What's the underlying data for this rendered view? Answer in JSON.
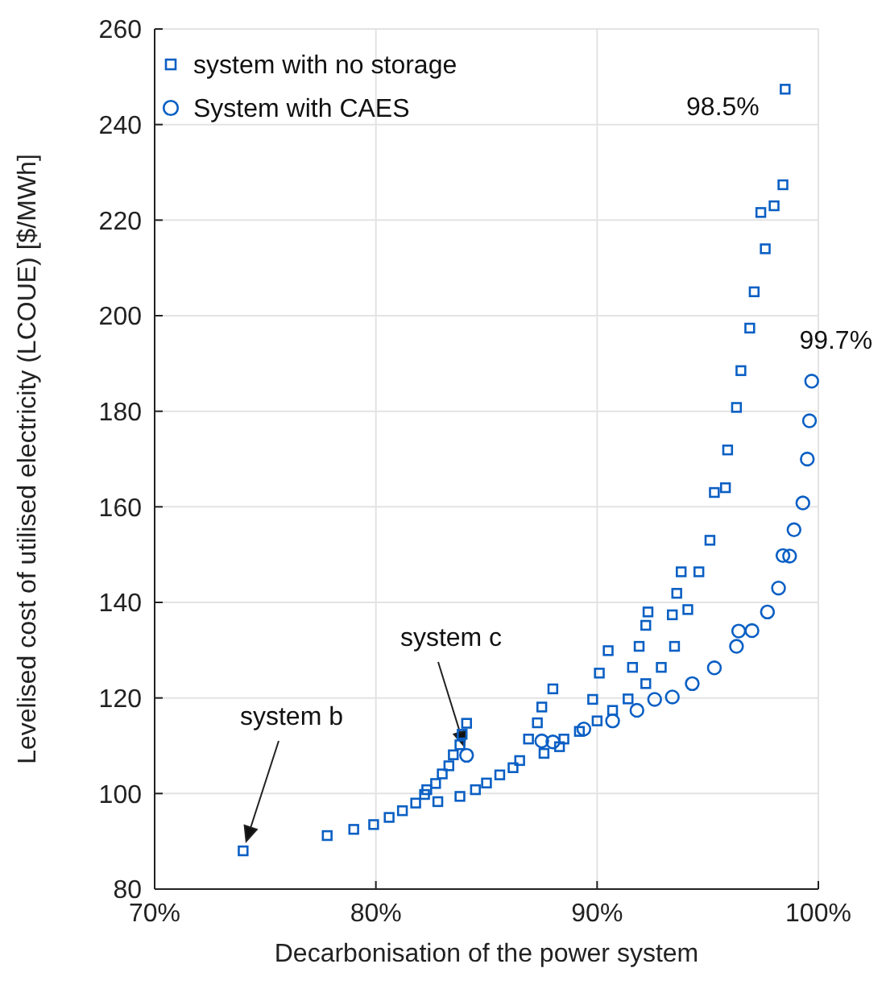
{
  "chart_data": {
    "type": "scatter",
    "xlabel": "Decarbonisation of the power system",
    "ylabel": "Levelised cost of utilised electricity (LCOUE) [$/MWh]",
    "xlim": [
      70,
      100
    ],
    "xticks": [
      {
        "value": 70,
        "label": "70%"
      },
      {
        "value": 80,
        "label": "80%"
      },
      {
        "value": 90,
        "label": "90%"
      },
      {
        "value": 100,
        "label": "100%"
      }
    ],
    "ylim": [
      80,
      260
    ],
    "yticks": [
      80,
      100,
      120,
      140,
      160,
      180,
      200,
      220,
      240,
      260
    ],
    "grid": true,
    "legend": "top left",
    "series": [
      {
        "name": "system with no storage",
        "color": "#0a5fc4",
        "marker": "square",
        "x": [
          74.0,
          77.8,
          79.0,
          79.9,
          80.6,
          81.2,
          81.8,
          82.2,
          82.8,
          83.8,
          84.5,
          85.0,
          85.6,
          86.2,
          86.5,
          87.6,
          88.3,
          82.3,
          82.7,
          83.0,
          83.3,
          83.5,
          83.8,
          83.9,
          84.1,
          86.9,
          87.3,
          87.5,
          88.0,
          88.5,
          89.2,
          89.8,
          90.0,
          90.1,
          90.5,
          90.7,
          91.4,
          91.6,
          91.9,
          92.2,
          92.3,
          92.2,
          92.9,
          93.4,
          93.5,
          93.6,
          93.8,
          94.1,
          94.6,
          95.1,
          95.3,
          95.8,
          95.9,
          96.3,
          96.5,
          96.9,
          97.1,
          97.4,
          97.6,
          98.0,
          98.4,
          98.5
        ],
        "values": [
          88,
          91.2,
          92.5,
          93.5,
          95,
          96.4,
          98,
          99.8,
          98.3,
          99.4,
          100.8,
          102.2,
          103.9,
          105.4,
          106.9,
          108.4,
          109.8,
          100.8,
          102.1,
          104.1,
          105.8,
          108.1,
          110.2,
          112.4,
          114.7,
          111.4,
          114.8,
          118.1,
          121.9,
          111.4,
          113,
          119.7,
          115.2,
          125.2,
          129.9,
          117.4,
          119.8,
          126.4,
          130.8,
          123,
          138,
          135.2,
          126.4,
          137.4,
          130.8,
          141.9,
          146.4,
          138.5,
          146.4,
          153,
          163,
          164,
          171.9,
          180.8,
          188.5,
          197.4,
          205,
          221.6,
          214,
          223,
          227.4,
          247.4
        ]
      },
      {
        "name": "System with CAES",
        "color": "#0a5fc4",
        "marker": "circle",
        "x": [
          84.1,
          87.5,
          88.0,
          89.4,
          90.7,
          91.8,
          92.6,
          93.4,
          94.3,
          95.3,
          96.3,
          96.4,
          97.0,
          97.7,
          98.2,
          98.4,
          98.7,
          98.9,
          99.3,
          99.5,
          99.6,
          99.7
        ],
        "values": [
          108,
          111,
          110.8,
          113.5,
          115.2,
          117.4,
          119.7,
          120.2,
          123,
          126.3,
          130.8,
          134,
          134.1,
          138,
          143,
          149.8,
          149.7,
          155.2,
          160.8,
          170,
          178,
          186.3
        ]
      }
    ],
    "annotations": [
      "system b",
      "system c",
      {
        "text": "98.5%",
        "x": 98.5,
        "y": 247.4
      },
      {
        "text": "99.7%",
        "x": 99.7,
        "y": 186.3
      }
    ]
  }
}
